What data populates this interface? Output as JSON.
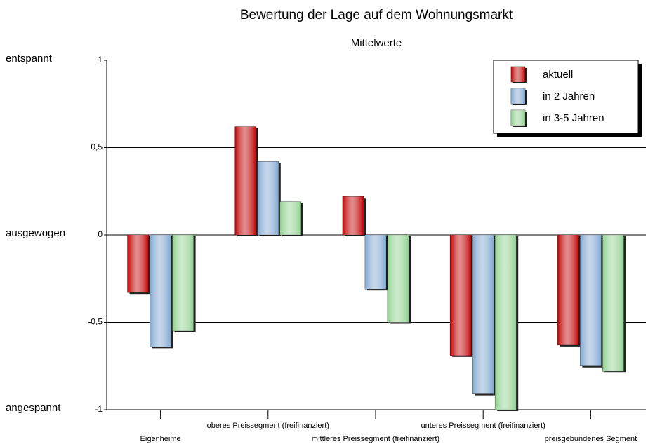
{
  "chart_data": {
    "type": "bar",
    "title": "Bewertung der Lage auf dem Wohnungsmarkt",
    "subtitle": "Mittelwerte",
    "categories": [
      "Eigenheime",
      "oberes Preissegment (freifinanziert)",
      "mittleres Preissegment (freifinanziert)",
      "unteres Preissegment (freifinanziert)",
      "preisgebundenes Segment"
    ],
    "series": [
      {
        "name": "aktuell",
        "color": "#c00000",
        "values": [
          -0.33,
          0.62,
          0.22,
          -0.69,
          -0.63
        ]
      },
      {
        "name": "in 2 Jahren",
        "color": "#7fa6d0",
        "values": [
          -0.64,
          0.42,
          -0.31,
          -0.91,
          -0.75
        ]
      },
      {
        "name": "in 3-5 Jahren",
        "color": "#8fd08f",
        "values": [
          -0.55,
          0.19,
          -0.5,
          -1.0,
          -0.78
        ]
      }
    ],
    "ylim": [
      -1,
      1
    ],
    "yticks": [
      {
        "value": -1,
        "label": "-1"
      },
      {
        "value": -0.5,
        "label": "-0,5"
      },
      0,
      {
        "value": 0.5,
        "label": "0,5"
      },
      1
    ],
    "y_annotations": [
      {
        "value": 1,
        "label": "entspannt"
      },
      {
        "value": 0,
        "label": "ausgewogen"
      },
      {
        "value": -1,
        "label": "angespannt"
      }
    ],
    "grid": true,
    "legend": "upper right"
  }
}
